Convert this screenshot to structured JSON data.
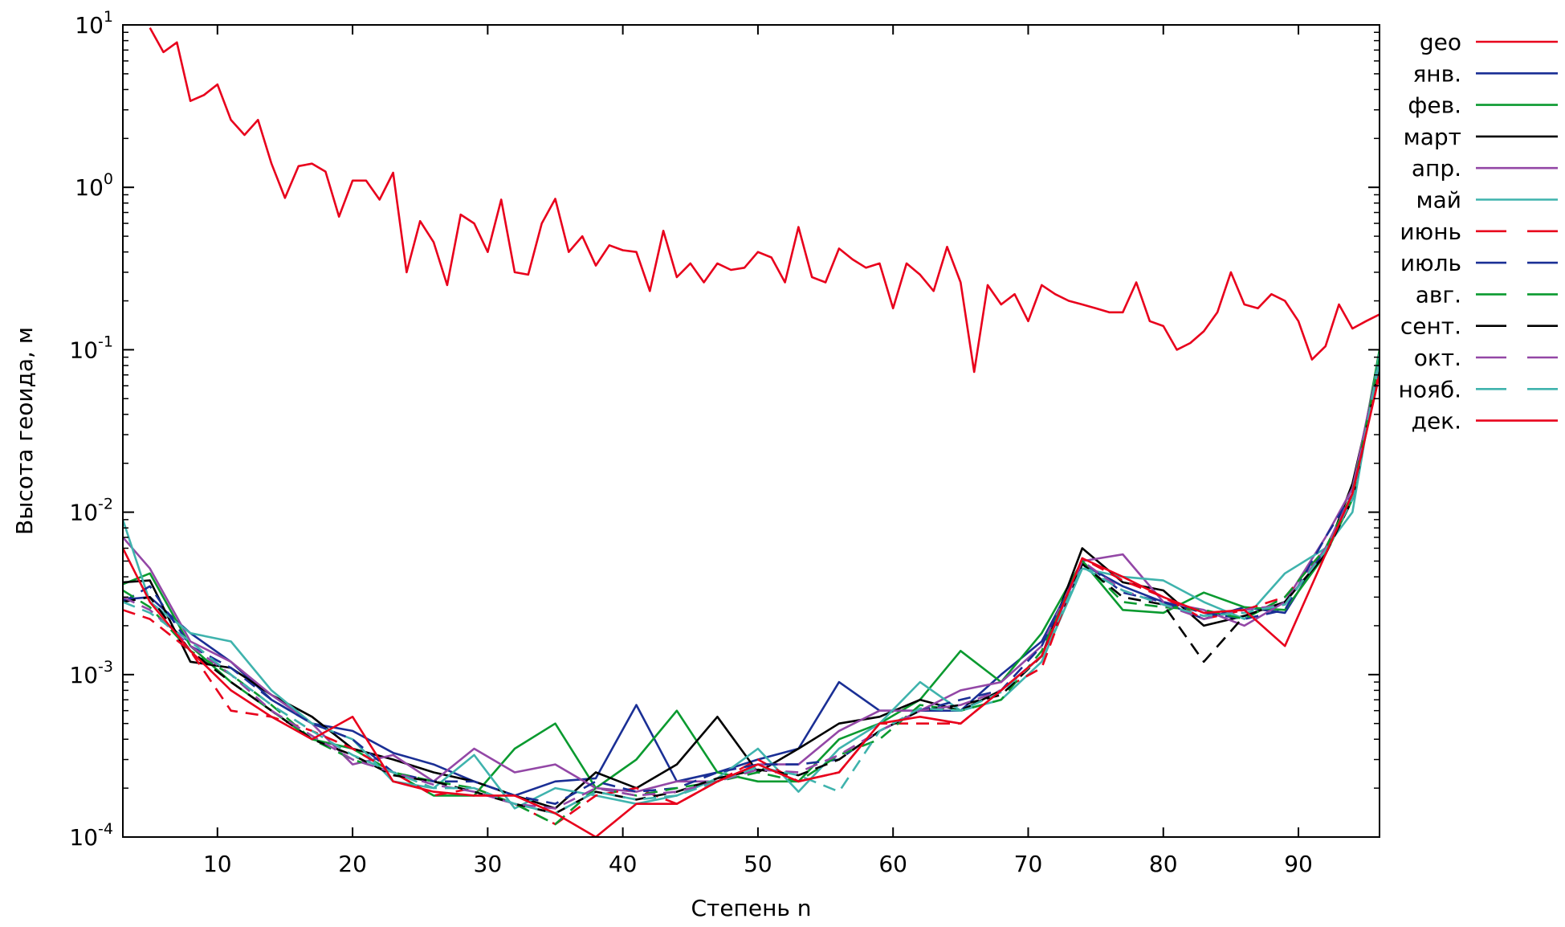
{
  "chart_data": {
    "type": "line",
    "title": "",
    "xlabel": "Степень n",
    "ylabel": "Высота геоида, м",
    "xlim": [
      3,
      96
    ],
    "ylim": [
      0.0001,
      10
    ],
    "y_scale": "log",
    "x_ticks": [
      "10",
      "20",
      "30",
      "40",
      "50",
      "60",
      "70",
      "80",
      "90"
    ],
    "x_tick_values": [
      10,
      20,
      30,
      40,
      50,
      60,
      70,
      80,
      90
    ],
    "y_ticks": [
      {
        "value": 0.0001,
        "base": "10",
        "exp": "-4"
      },
      {
        "value": 0.001,
        "base": "10",
        "exp": "-3"
      },
      {
        "value": 0.01,
        "base": "10",
        "exp": "-2"
      },
      {
        "value": 0.1,
        "base": "10",
        "exp": "-1"
      },
      {
        "value": 1,
        "base": "10",
        "exp": "0"
      },
      {
        "value": 10,
        "base": "10",
        "exp": "1"
      }
    ],
    "grid": false,
    "legend_position": "right",
    "series": [
      {
        "name": "geo",
        "color": "#e8001c",
        "dash": "solid",
        "x": [
          5,
          6,
          7,
          8,
          9,
          10,
          11,
          12,
          13,
          14,
          15,
          16,
          17,
          18,
          19,
          20,
          21,
          22,
          23,
          24,
          25,
          26,
          27,
          28,
          29,
          30,
          31,
          32,
          33,
          34,
          35,
          36,
          37,
          38,
          39,
          40,
          41,
          42,
          43,
          44,
          45,
          46,
          47,
          48,
          49,
          50,
          51,
          52,
          53,
          54,
          55,
          56,
          57,
          58,
          59,
          60,
          61,
          62,
          63,
          64,
          65,
          66,
          67,
          68,
          69,
          70,
          71,
          72,
          73,
          74,
          75,
          76,
          77,
          78,
          79,
          80,
          81,
          82,
          83,
          84,
          85,
          86,
          87,
          88,
          89,
          90,
          91,
          92,
          93,
          94,
          95,
          96
        ],
        "y": [
          9.6,
          6.8,
          7.8,
          3.4,
          3.7,
          4.3,
          2.6,
          2.1,
          2.6,
          1.4,
          0.86,
          1.35,
          1.4,
          1.25,
          0.66,
          1.1,
          1.1,
          0.84,
          1.23,
          0.3,
          0.62,
          0.46,
          0.25,
          0.68,
          0.6,
          0.4,
          0.84,
          0.3,
          0.29,
          0.6,
          0.85,
          0.4,
          0.5,
          0.33,
          0.44,
          0.41,
          0.4,
          0.23,
          0.54,
          0.28,
          0.34,
          0.26,
          0.34,
          0.31,
          0.32,
          0.4,
          0.37,
          0.26,
          0.57,
          0.28,
          0.26,
          0.42,
          0.36,
          0.32,
          0.34,
          0.18,
          0.34,
          0.29,
          0.23,
          0.43,
          0.26,
          0.073,
          0.25,
          0.19,
          0.22,
          0.15,
          0.25,
          0.22,
          0.2,
          0.19,
          0.18,
          0.17,
          0.17,
          0.26,
          0.15,
          0.14,
          0.1,
          0.11,
          0.13,
          0.17,
          0.3,
          0.19,
          0.18,
          0.22,
          0.2,
          0.15,
          0.087,
          0.105,
          0.19,
          0.135,
          0.15,
          0.165
        ]
      },
      {
        "name": "янв.",
        "color": "#1a2f95",
        "dash": "solid",
        "x": [
          3,
          5,
          8,
          11,
          14,
          17,
          20,
          23,
          26,
          29,
          32,
          35,
          38,
          41,
          44,
          47,
          50,
          53,
          56,
          59,
          62,
          65,
          68,
          71,
          74,
          77,
          80,
          83,
          86,
          89,
          92,
          94,
          96
        ],
        "y": [
          0.0029,
          0.003,
          0.0018,
          0.0012,
          0.0007,
          0.0005,
          0.00045,
          0.00033,
          0.00028,
          0.00022,
          0.00018,
          0.00022,
          0.00023,
          0.00065,
          0.00022,
          0.00025,
          0.0003,
          0.00035,
          0.0009,
          0.0006,
          0.0006,
          0.0006,
          0.001,
          0.0016,
          0.0048,
          0.0035,
          0.0028,
          0.0022,
          0.0026,
          0.0024,
          0.006,
          0.012,
          0.09
        ]
      },
      {
        "name": "фев.",
        "color": "#0a9a2f",
        "dash": "solid",
        "x": [
          3,
          5,
          8,
          11,
          14,
          17,
          20,
          23,
          26,
          29,
          32,
          35,
          38,
          41,
          44,
          47,
          50,
          53,
          56,
          59,
          62,
          65,
          68,
          71,
          74,
          77,
          80,
          83,
          86,
          89,
          92,
          94,
          96
        ],
        "y": [
          0.0036,
          0.0042,
          0.0015,
          0.0009,
          0.0006,
          0.0004,
          0.00035,
          0.00025,
          0.00018,
          0.00018,
          0.00035,
          0.0005,
          0.0002,
          0.0003,
          0.0006,
          0.00025,
          0.00022,
          0.00022,
          0.0004,
          0.0005,
          0.0007,
          0.0014,
          0.0009,
          0.0018,
          0.005,
          0.0025,
          0.0024,
          0.0032,
          0.0026,
          0.0025,
          0.0055,
          0.012,
          0.1
        ]
      },
      {
        "name": "март",
        "color": "#000000",
        "dash": "solid",
        "x": [
          3,
          5,
          8,
          11,
          14,
          17,
          20,
          23,
          26,
          29,
          32,
          35,
          38,
          41,
          44,
          47,
          50,
          53,
          56,
          59,
          62,
          65,
          68,
          71,
          74,
          77,
          80,
          83,
          86,
          89,
          92,
          94,
          96
        ],
        "y": [
          0.0037,
          0.0038,
          0.0012,
          0.0011,
          0.00075,
          0.00055,
          0.00035,
          0.0003,
          0.00025,
          0.00022,
          0.00018,
          0.00015,
          0.00025,
          0.0002,
          0.00028,
          0.00055,
          0.00025,
          0.00035,
          0.0005,
          0.00055,
          0.0007,
          0.0006,
          0.0008,
          0.0013,
          0.006,
          0.0037,
          0.0033,
          0.002,
          0.0023,
          0.0028,
          0.0055,
          0.015,
          0.08
        ]
      },
      {
        "name": "апр.",
        "color": "#9347a6",
        "dash": "solid",
        "x": [
          3,
          5,
          8,
          11,
          14,
          17,
          20,
          23,
          26,
          29,
          32,
          35,
          38,
          41,
          44,
          47,
          50,
          53,
          56,
          59,
          62,
          65,
          68,
          71,
          74,
          77,
          80,
          83,
          86,
          89,
          92,
          94,
          96
        ],
        "y": [
          0.007,
          0.0045,
          0.0016,
          0.0012,
          0.00075,
          0.0005,
          0.00028,
          0.00032,
          0.00022,
          0.00035,
          0.00025,
          0.00028,
          0.0002,
          0.00019,
          0.00022,
          0.00022,
          0.00028,
          0.00028,
          0.00045,
          0.0006,
          0.0006,
          0.0008,
          0.0009,
          0.0015,
          0.005,
          0.0055,
          0.0028,
          0.0025,
          0.002,
          0.0028,
          0.007,
          0.014,
          0.09
        ]
      },
      {
        "name": "май",
        "color": "#3fb3ad",
        "dash": "solid",
        "x": [
          3,
          5,
          8,
          11,
          14,
          17,
          20,
          23,
          26,
          29,
          32,
          35,
          38,
          41,
          44,
          47,
          50,
          53,
          56,
          59,
          62,
          65,
          68,
          71,
          74,
          77,
          80,
          83,
          86,
          89,
          92,
          94,
          96
        ],
        "y": [
          0.009,
          0.0028,
          0.0018,
          0.0016,
          0.0008,
          0.0005,
          0.0004,
          0.00022,
          0.0002,
          0.00032,
          0.00015,
          0.0002,
          0.00018,
          0.00016,
          0.00018,
          0.00023,
          0.00035,
          0.00019,
          0.00035,
          0.0005,
          0.0009,
          0.0006,
          0.0007,
          0.0012,
          0.0045,
          0.004,
          0.0038,
          0.0028,
          0.0022,
          0.0042,
          0.006,
          0.01,
          0.095
        ]
      },
      {
        "name": "июнь",
        "color": "#e8001c",
        "dash": "dashed",
        "x": [
          3,
          5,
          8,
          11,
          14,
          17,
          20,
          23,
          26,
          29,
          32,
          35,
          38,
          41,
          44,
          47,
          50,
          53,
          56,
          59,
          62,
          65,
          68,
          71,
          74,
          77,
          80,
          83,
          86,
          89,
          92,
          94,
          96
        ],
        "y": [
          0.0025,
          0.0022,
          0.0014,
          0.0006,
          0.00055,
          0.00045,
          0.00035,
          0.00025,
          0.00018,
          0.0002,
          0.00016,
          0.00012,
          0.00018,
          0.0002,
          0.00016,
          0.00022,
          0.0003,
          0.00022,
          0.00025,
          0.0005,
          0.0005,
          0.0005,
          0.0008,
          0.0011,
          0.0052,
          0.0038,
          0.003,
          0.0022,
          0.0025,
          0.003,
          0.006,
          0.013,
          0.075
        ]
      },
      {
        "name": "июль",
        "color": "#1a2f95",
        "dash": "dashed",
        "x": [
          3,
          5,
          8,
          11,
          14,
          17,
          20,
          23,
          26,
          29,
          32,
          35,
          38,
          41,
          44,
          47,
          50,
          53,
          56,
          59,
          62,
          65,
          68,
          71,
          74,
          77,
          80,
          83,
          86,
          89,
          92,
          94,
          96
        ],
        "y": [
          0.0028,
          0.0035,
          0.0015,
          0.0011,
          0.0007,
          0.0005,
          0.0004,
          0.00025,
          0.00022,
          0.00022,
          0.00018,
          0.00016,
          0.00022,
          0.00019,
          0.0002,
          0.00025,
          0.00028,
          0.00028,
          0.0003,
          0.00045,
          0.0006,
          0.0007,
          0.0008,
          0.0015,
          0.005,
          0.0032,
          0.0028,
          0.0024,
          0.0022,
          0.0025,
          0.007,
          0.013,
          0.085
        ]
      },
      {
        "name": "авг.",
        "color": "#0a9a2f",
        "dash": "dashed",
        "x": [
          3,
          5,
          8,
          11,
          14,
          17,
          20,
          23,
          26,
          29,
          32,
          35,
          38,
          41,
          44,
          47,
          50,
          53,
          56,
          59,
          62,
          65,
          68,
          71,
          74,
          77,
          80,
          83,
          86,
          89,
          92,
          94,
          96
        ],
        "y": [
          0.0033,
          0.0026,
          0.0014,
          0.001,
          0.00065,
          0.0004,
          0.0003,
          0.00025,
          0.00022,
          0.0002,
          0.00016,
          0.00012,
          0.0002,
          0.00018,
          0.0002,
          0.00022,
          0.00025,
          0.00022,
          0.00032,
          0.0004,
          0.00065,
          0.0006,
          0.0007,
          0.0014,
          0.005,
          0.0028,
          0.0026,
          0.0025,
          0.0022,
          0.003,
          0.006,
          0.013,
          0.088
        ]
      },
      {
        "name": "сент.",
        "color": "#000000",
        "dash": "dashed",
        "x": [
          3,
          5,
          8,
          11,
          14,
          17,
          20,
          23,
          26,
          29,
          32,
          35,
          38,
          41,
          44,
          47,
          50,
          53,
          56,
          59,
          62,
          65,
          68,
          71,
          74,
          77,
          80,
          83,
          86,
          89,
          92,
          94,
          96
        ],
        "y": [
          0.0028,
          0.003,
          0.0014,
          0.0009,
          0.0006,
          0.0004,
          0.00032,
          0.00024,
          0.00022,
          0.00019,
          0.00016,
          0.00014,
          0.00019,
          0.00017,
          0.00019,
          0.00023,
          0.00026,
          0.00024,
          0.0003,
          0.00045,
          0.0006,
          0.00065,
          0.00075,
          0.0013,
          0.0048,
          0.003,
          0.0027,
          0.0012,
          0.0023,
          0.0028,
          0.0055,
          0.012,
          0.08
        ]
      },
      {
        "name": "окт.",
        "color": "#9347a6",
        "dash": "dashed",
        "x": [
          3,
          5,
          8,
          11,
          14,
          17,
          20,
          23,
          26,
          29,
          32,
          35,
          38,
          41,
          44,
          47,
          50,
          53,
          56,
          59,
          62,
          65,
          68,
          71,
          74,
          77,
          80,
          83,
          86,
          89,
          92,
          94,
          96
        ],
        "y": [
          0.003,
          0.0025,
          0.0015,
          0.001,
          0.0006,
          0.00042,
          0.0003,
          0.00025,
          0.00021,
          0.00019,
          0.00016,
          0.00015,
          0.0002,
          0.00018,
          0.00019,
          0.00022,
          0.00026,
          0.00025,
          0.00032,
          0.00045,
          0.0006,
          0.00065,
          0.0008,
          0.0013,
          0.005,
          0.0033,
          0.0027,
          0.0022,
          0.0025,
          0.0027,
          0.006,
          0.013,
          0.085
        ]
      },
      {
        "name": "нояб.",
        "color": "#3fb3ad",
        "dash": "dashed",
        "x": [
          3,
          5,
          8,
          11,
          14,
          17,
          20,
          23,
          26,
          29,
          32,
          35,
          38,
          41,
          44,
          47,
          50,
          53,
          56,
          59,
          62,
          65,
          68,
          71,
          74,
          77,
          80,
          83,
          86,
          89,
          92,
          94,
          96
        ],
        "y": [
          0.0028,
          0.0024,
          0.0016,
          0.001,
          0.00065,
          0.00045,
          0.00032,
          0.00025,
          0.0002,
          0.0002,
          0.00016,
          0.00014,
          0.00019,
          0.00017,
          0.00018,
          0.00022,
          0.00027,
          0.00024,
          0.00019,
          0.00045,
          0.00062,
          0.0006,
          0.00078,
          0.0013,
          0.0046,
          0.0033,
          0.0027,
          0.0023,
          0.0024,
          0.0027,
          0.0058,
          0.012,
          0.085
        ]
      },
      {
        "name": "дек.",
        "color": "#e8001c",
        "dash": "solid",
        "x": [
          3,
          5,
          8,
          11,
          14,
          17,
          20,
          23,
          26,
          29,
          32,
          35,
          38,
          41,
          44,
          47,
          50,
          53,
          56,
          59,
          62,
          65,
          68,
          71,
          74,
          77,
          80,
          83,
          86,
          89,
          92,
          94,
          96
        ],
        "y": [
          0.006,
          0.0028,
          0.0014,
          0.0008,
          0.00055,
          0.0004,
          0.00055,
          0.00022,
          0.00019,
          0.00018,
          0.00018,
          0.00014,
          0.0001,
          0.00016,
          0.00016,
          0.00022,
          0.00028,
          0.00022,
          0.00025,
          0.0005,
          0.00055,
          0.0005,
          0.0008,
          0.0013,
          0.0052,
          0.004,
          0.003,
          0.0024,
          0.0025,
          0.0015,
          0.0055,
          0.013,
          0.07
        ]
      }
    ]
  }
}
